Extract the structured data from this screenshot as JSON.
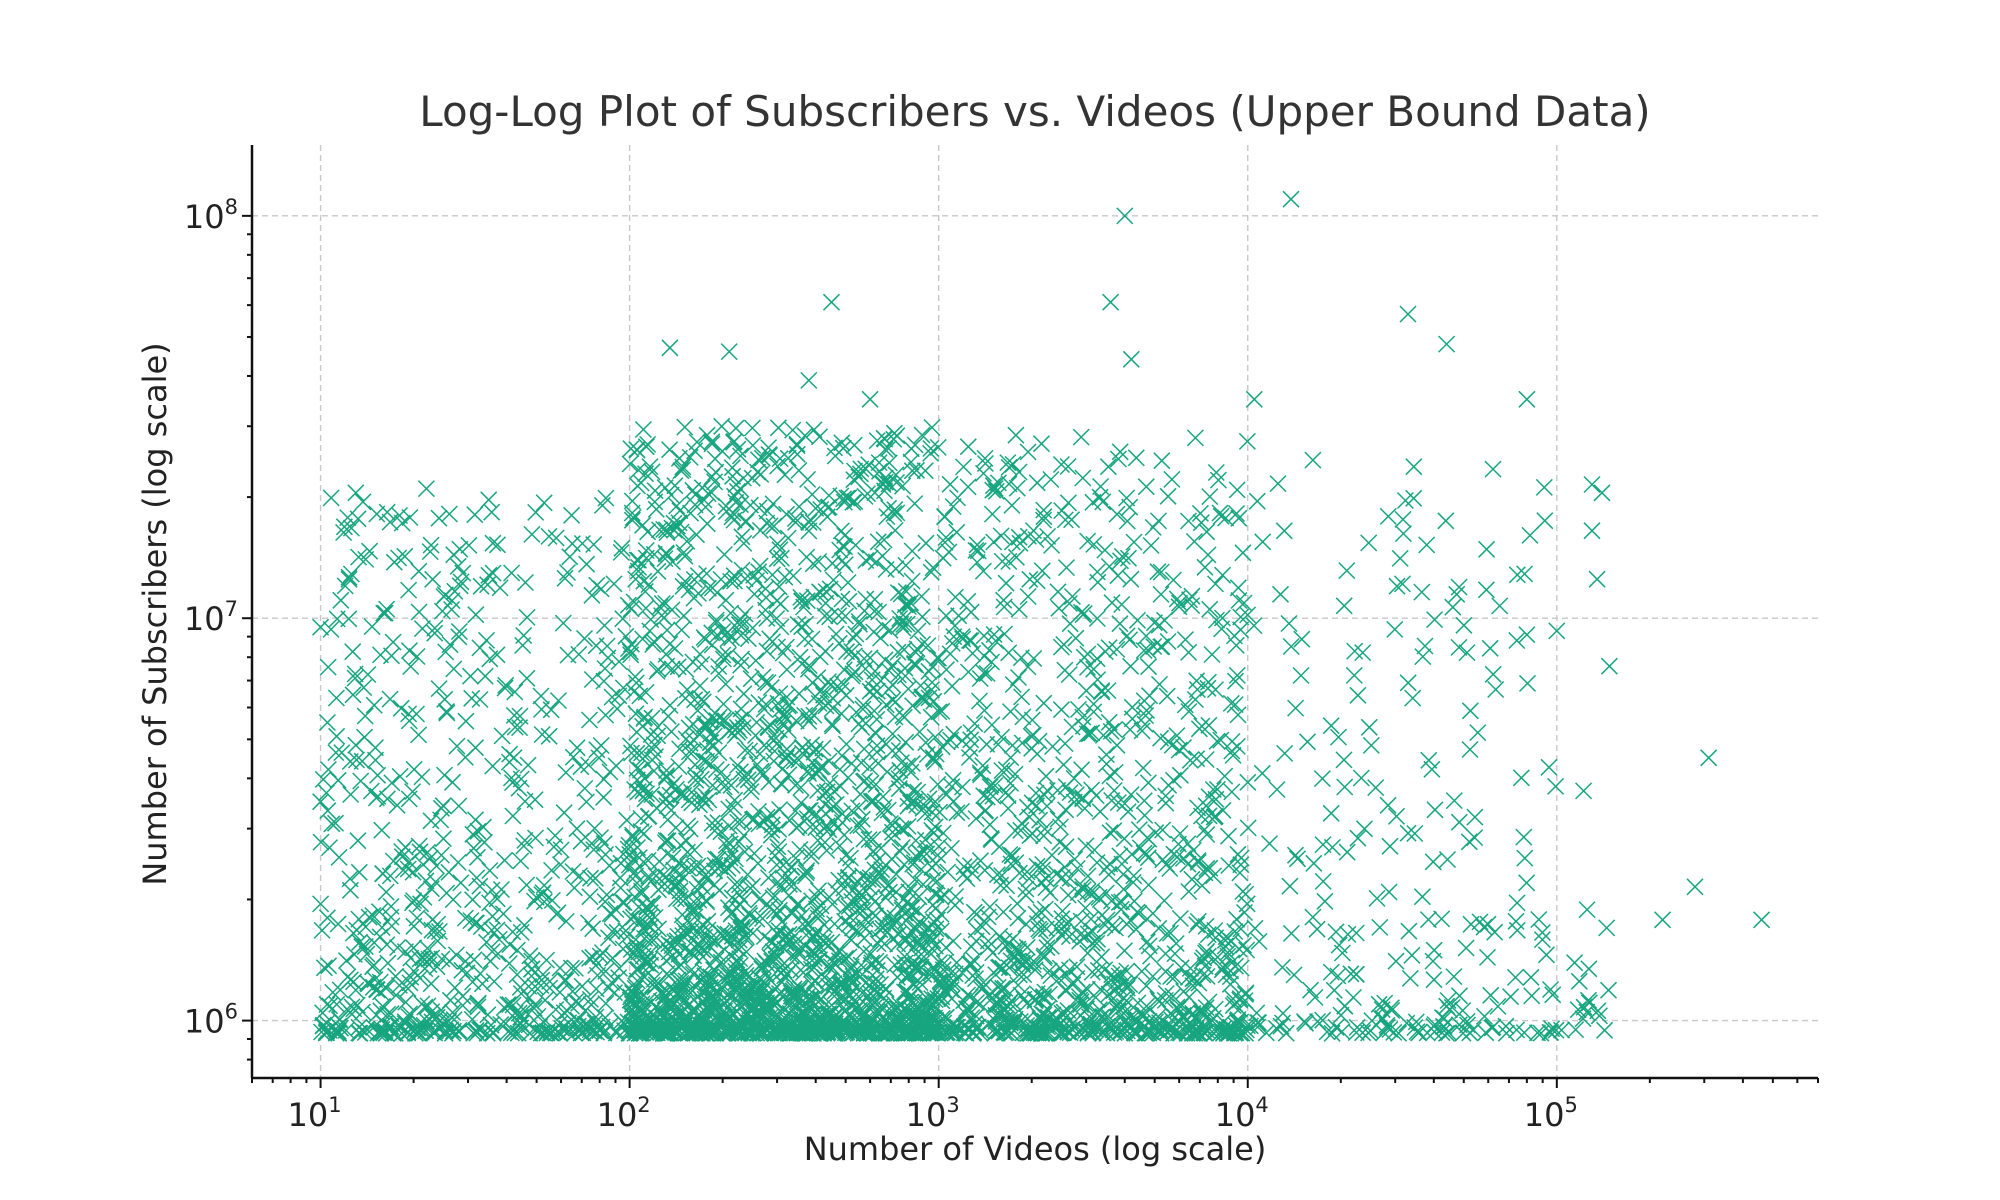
{
  "chart_data": {
    "type": "scatter",
    "title": "Log-Log Plot of Subscribers vs. Videos (Upper Bound Data)",
    "xlabel": "Number of Videos (log scale)",
    "ylabel": "Number of Subscribers (log scale)",
    "xscale": "log",
    "yscale": "log",
    "xlim": [
      6,
      700000
    ],
    "ylim": [
      720000,
      150000000
    ],
    "xticks": [
      10,
      100,
      1000,
      10000,
      100000
    ],
    "yticks": [
      1000000,
      10000000,
      100000000
    ],
    "xtick_labels": [
      {
        "base": "10",
        "exp": "1"
      },
      {
        "base": "10",
        "exp": "2"
      },
      {
        "base": "10",
        "exp": "3"
      },
      {
        "base": "10",
        "exp": "4"
      },
      {
        "base": "10",
        "exp": "5"
      }
    ],
    "ytick_labels": [
      {
        "base": "10",
        "exp": "6"
      },
      {
        "base": "10",
        "exp": "7"
      },
      {
        "base": "10",
        "exp": "8"
      }
    ],
    "grid": true,
    "marker": "x",
    "color": "#17a57f",
    "highlighted_points": [
      {
        "x": 13800,
        "y": 110000000
      },
      {
        "x": 4000,
        "y": 100000000
      },
      {
        "x": 3600,
        "y": 61000000
      },
      {
        "x": 450,
        "y": 61000000
      },
      {
        "x": 33000,
        "y": 57000000
      },
      {
        "x": 44000,
        "y": 48000000
      },
      {
        "x": 4200,
        "y": 44000000
      },
      {
        "x": 135,
        "y": 47000000
      },
      {
        "x": 210,
        "y": 46000000
      },
      {
        "x": 380,
        "y": 39000000
      },
      {
        "x": 80000,
        "y": 35000000
      },
      {
        "x": 10500,
        "y": 35000000
      },
      {
        "x": 600,
        "y": 35000000
      },
      {
        "x": 310000,
        "y": 4500000
      },
      {
        "x": 460000,
        "y": 1780000
      },
      {
        "x": 280000,
        "y": 2150000
      },
      {
        "x": 220000,
        "y": 1780000
      },
      {
        "x": 148000,
        "y": 7600000
      },
      {
        "x": 145000,
        "y": 1700000
      },
      {
        "x": 140000,
        "y": 20500000
      },
      {
        "x": 130000,
        "y": 21500000
      },
      {
        "x": 130000,
        "y": 16500000
      },
      {
        "x": 135000,
        "y": 12500000
      },
      {
        "x": 125000,
        "y": 1050000
      },
      {
        "x": 115000,
        "y": 950000
      },
      {
        "x": 100000,
        "y": 9300000
      },
      {
        "x": 80000,
        "y": 9100000
      },
      {
        "x": 13,
        "y": 20500000
      },
      {
        "x": 22,
        "y": 21000000
      },
      {
        "x": 10,
        "y": 3500000
      },
      {
        "x": 10,
        "y": 1950000
      },
      {
        "x": 10,
        "y": 9500000
      },
      {
        "x": 14,
        "y": 14000000
      },
      {
        "x": 18,
        "y": 18000000
      }
    ],
    "dense_regions": [
      {
        "x_range": [
          10,
          100
        ],
        "y_range": [
          900000,
          20000000
        ],
        "count": 700
      },
      {
        "x_range": [
          100,
          1000
        ],
        "y_range": [
          900000,
          30000000
        ],
        "count": 2200
      },
      {
        "x_range": [
          1000,
          10000
        ],
        "y_range": [
          900000,
          30000000
        ],
        "count": 1100
      },
      {
        "x_range": [
          10000,
          100000
        ],
        "y_range": [
          900000,
          25000000
        ],
        "count": 250
      },
      {
        "x_range": [
          100000,
          150000
        ],
        "y_range": [
          900000,
          5000000
        ],
        "count": 15
      }
    ],
    "y_floor": 930000
  }
}
